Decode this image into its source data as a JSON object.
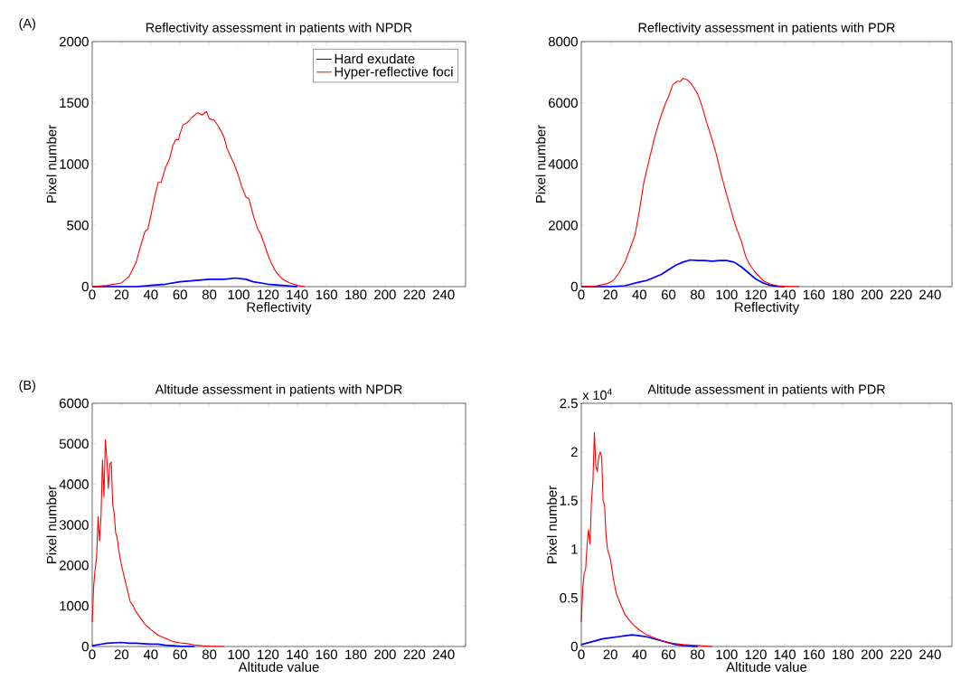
{
  "chart_data": [
    {
      "type": "line",
      "title": "Reflectivity assessment in patients with NPDR",
      "xlabel": "Reflectivity",
      "ylabel": "Pixel number",
      "annotations": [
        "(A)"
      ],
      "xlim": [
        0,
        255
      ],
      "xticks": [
        0,
        20,
        40,
        60,
        80,
        100,
        120,
        140,
        160,
        180,
        200,
        220,
        240
      ],
      "ylim": [
        0,
        2000
      ],
      "yticks": [
        0,
        500,
        1000,
        1500,
        2000
      ],
      "legend": "top right",
      "marker": "none",
      "line_style": "solid",
      "series": [
        {
          "name": "Hard exudate",
          "color": "#0000ff",
          "x": [
            0,
            30,
            40,
            50,
            60,
            70,
            80,
            90,
            98,
            105,
            110,
            120,
            130,
            140
          ],
          "values": [
            0,
            0,
            10,
            20,
            40,
            50,
            60,
            60,
            70,
            60,
            40,
            20,
            10,
            0
          ]
        },
        {
          "name": "Hyper-reflective foci",
          "color": "#ff0000",
          "x": [
            0,
            10,
            15,
            20,
            25,
            28,
            30,
            33,
            36,
            38,
            40,
            43,
            45,
            47,
            50,
            53,
            55,
            57,
            59,
            60,
            62,
            65,
            68,
            72,
            75,
            78,
            80,
            83,
            85,
            88,
            90,
            92,
            95,
            97,
            100,
            102,
            105,
            107,
            110,
            113,
            115,
            118,
            120,
            122,
            125,
            127,
            130,
            135,
            140,
            145
          ],
          "values": [
            0,
            10,
            20,
            30,
            80,
            150,
            200,
            330,
            450,
            470,
            580,
            750,
            850,
            850,
            970,
            1050,
            1150,
            1200,
            1200,
            1250,
            1320,
            1340,
            1380,
            1420,
            1400,
            1430,
            1370,
            1360,
            1330,
            1270,
            1220,
            1130,
            1050,
            1000,
            900,
            820,
            730,
            720,
            580,
            470,
            430,
            330,
            260,
            200,
            130,
            100,
            60,
            30,
            10,
            0
          ]
        }
      ]
    },
    {
      "type": "line",
      "title": "Reflectivity assessment in patients with PDR",
      "xlabel": "Reflectivity",
      "ylabel": "Pixel number",
      "xlim": [
        0,
        255
      ],
      "xticks": [
        0,
        20,
        40,
        60,
        80,
        100,
        120,
        140,
        160,
        180,
        200,
        220,
        240
      ],
      "ylim": [
        0,
        8000
      ],
      "yticks": [
        0,
        2000,
        4000,
        6000,
        8000
      ],
      "marker": "none",
      "line_style": "solid",
      "series": [
        {
          "color": "#0000ff",
          "x": [
            0,
            20,
            30,
            40,
            45,
            50,
            55,
            60,
            65,
            70,
            75,
            80,
            85,
            90,
            95,
            100,
            105,
            110,
            115,
            120,
            125,
            130,
            135,
            140
          ],
          "values": [
            0,
            0,
            30,
            150,
            200,
            300,
            400,
            550,
            700,
            800,
            870,
            850,
            850,
            830,
            850,
            850,
            800,
            650,
            450,
            250,
            120,
            40,
            10,
            0
          ]
        },
        {
          "color": "#ff0000",
          "x": [
            0,
            10,
            18,
            22,
            26,
            30,
            34,
            37,
            40,
            43,
            46,
            50,
            53,
            55,
            58,
            60,
            63,
            66,
            68,
            70,
            73,
            76,
            80,
            83,
            86,
            90,
            93,
            96,
            100,
            103,
            106,
            110,
            113,
            116,
            120,
            125,
            130,
            135,
            140,
            150
          ],
          "values": [
            0,
            20,
            100,
            200,
            450,
            800,
            1300,
            1700,
            2500,
            3400,
            4000,
            4800,
            5300,
            5600,
            6000,
            6200,
            6600,
            6700,
            6700,
            6800,
            6750,
            6600,
            6300,
            5900,
            5400,
            4800,
            4300,
            3700,
            3000,
            2500,
            2000,
            1500,
            1000,
            700,
            450,
            200,
            80,
            30,
            10,
            0
          ]
        }
      ]
    },
    {
      "type": "line",
      "title": "Altitude assessment in patients with NPDR",
      "xlabel": "Altitude value",
      "ylabel": "Pixel number",
      "annotations": [
        "(B)"
      ],
      "xlim": [
        0,
        255
      ],
      "xticks": [
        0,
        20,
        40,
        60,
        80,
        100,
        120,
        140,
        160,
        180,
        200,
        220,
        240
      ],
      "ylim": [
        0,
        6000
      ],
      "yticks": [
        0,
        1000,
        2000,
        3000,
        4000,
        5000,
        6000
      ],
      "marker": "none",
      "line_style": "solid",
      "series": [
        {
          "color": "#0000ff",
          "x": [
            0,
            5,
            10,
            15,
            20,
            25,
            30,
            40,
            45,
            50,
            60,
            70
          ],
          "values": [
            20,
            50,
            80,
            90,
            100,
            80,
            80,
            60,
            60,
            30,
            10,
            0
          ]
        },
        {
          "color": "#ff0000",
          "x": [
            0,
            1,
            2,
            3,
            4,
            5,
            6,
            7,
            8,
            9,
            10,
            11,
            12,
            13,
            14,
            15,
            16,
            17,
            18,
            20,
            22,
            24,
            26,
            28,
            30,
            33,
            36,
            40,
            45,
            50,
            55,
            60,
            65,
            70,
            75,
            80,
            90
          ],
          "values": [
            600,
            1500,
            1900,
            2200,
            3200,
            2600,
            3200,
            4600,
            3700,
            5100,
            4600,
            3900,
            4500,
            4550,
            3500,
            3300,
            2800,
            2700,
            2400,
            2000,
            1700,
            1400,
            1100,
            1000,
            850,
            700,
            550,
            420,
            280,
            200,
            120,
            90,
            70,
            40,
            20,
            10,
            0
          ]
        }
      ]
    },
    {
      "type": "line",
      "title": "Altitude assessment in patients with PDR",
      "xlabel": "Altitude value",
      "ylabel": "Pixel number",
      "annotations": [
        "x 10$^{4}$"
      ],
      "xlim": [
        0,
        255
      ],
      "xticks": [
        0,
        20,
        40,
        60,
        80,
        100,
        120,
        140,
        160,
        180,
        200,
        220,
        240
      ],
      "ylim": [
        0,
        2.5
      ],
      "yticks": [
        0,
        0.5,
        1,
        1.5,
        2,
        2.5
      ],
      "marker": "none",
      "line_style": "solid",
      "series": [
        {
          "color": "#0000ff",
          "x": [
            0,
            5,
            10,
            15,
            20,
            25,
            30,
            35,
            40,
            45,
            50,
            55,
            60,
            65,
            70,
            80
          ],
          "values": [
            0.02,
            0.04,
            0.06,
            0.08,
            0.09,
            0.1,
            0.11,
            0.12,
            0.11,
            0.1,
            0.08,
            0.06,
            0.04,
            0.02,
            0.01,
            0
          ]
        },
        {
          "color": "#ff0000",
          "x": [
            0,
            1,
            2,
            3,
            4,
            5,
            6,
            7,
            8,
            9,
            10,
            11,
            12,
            13,
            14,
            15,
            16,
            17,
            18,
            20,
            22,
            24,
            26,
            28,
            30,
            33,
            36,
            40,
            45,
            50,
            55,
            60,
            65,
            70,
            80,
            90
          ],
          "values": [
            0.25,
            0.6,
            0.75,
            0.8,
            1.05,
            1.2,
            1.05,
            1.5,
            1.7,
            2.2,
            1.85,
            1.8,
            1.95,
            2.0,
            1.95,
            1.5,
            1.45,
            1.15,
            1.0,
            0.9,
            0.7,
            0.55,
            0.47,
            0.4,
            0.33,
            0.27,
            0.22,
            0.17,
            0.12,
            0.09,
            0.06,
            0.04,
            0.03,
            0.02,
            0.01,
            0
          ]
        }
      ]
    }
  ]
}
